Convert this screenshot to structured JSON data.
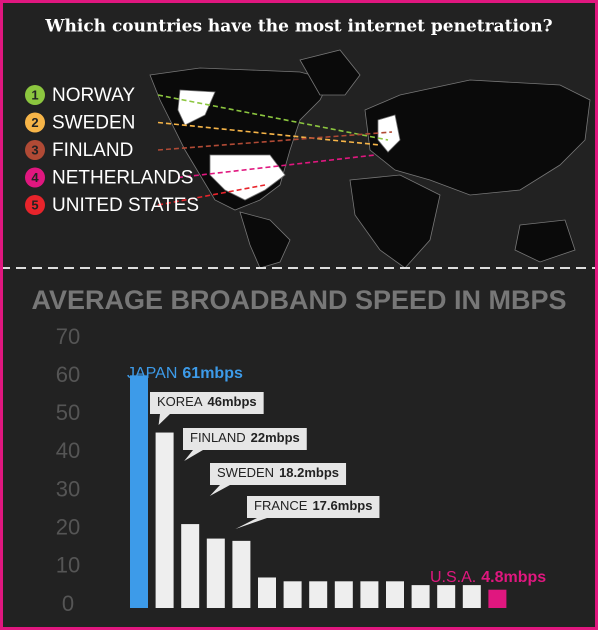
{
  "title": "Which countries have the most internet penetration?",
  "legend": [
    {
      "number": 1,
      "label": "NORWAY",
      "color": "#8cc63f"
    },
    {
      "number": 2,
      "label": "SWEDEN",
      "color": "#f7b548"
    },
    {
      "number": 3,
      "label": "FINLAND",
      "color": "#b04a35"
    },
    {
      "number": 4,
      "label": "NETHERLANDS",
      "color": "#e0177f"
    },
    {
      "number": 5,
      "label": "UNITED STATES",
      "color": "#e8242b"
    }
  ],
  "chart_data": {
    "type": "bar",
    "title": "AVERAGE BROADBAND SPEED IN MBPS",
    "categories": [
      "JAPAN",
      "KOREA",
      "FINLAND",
      "SWEDEN",
      "FRANCE",
      null,
      null,
      null,
      null,
      null,
      null,
      null,
      null,
      null,
      "U.S.A."
    ],
    "values": [
      61,
      46,
      22,
      18.2,
      17.6,
      8,
      7,
      7,
      7,
      7,
      7,
      6,
      6,
      6,
      4.8
    ],
    "value_labels": [
      "61mbps",
      "46mbps",
      "22mbps",
      "18.2mbps",
      "17.6mbps",
      null,
      null,
      null,
      null,
      null,
      null,
      null,
      null,
      null,
      "4.8mbps"
    ],
    "colors": [
      "#3d9be9",
      "#eeeeee",
      "#eeeeee",
      "#eeeeee",
      "#eeeeee",
      "#eeeeee",
      "#eeeeee",
      "#eeeeee",
      "#eeeeee",
      "#eeeeee",
      "#eeeeee",
      "#eeeeee",
      "#eeeeee",
      "#eeeeee",
      "#e0177f"
    ],
    "ylim": [
      0,
      70
    ],
    "yticks": [
      0,
      10,
      20,
      30,
      40,
      50,
      60,
      70
    ]
  }
}
